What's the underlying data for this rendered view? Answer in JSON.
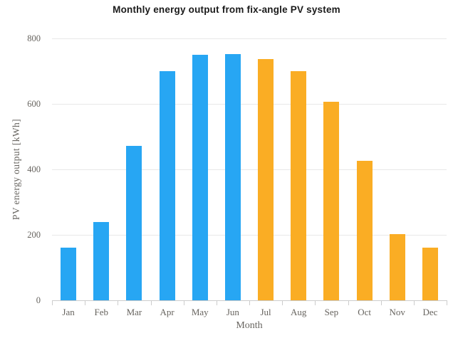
{
  "chart_data": {
    "type": "bar",
    "title": "Monthly energy output from fix-angle PV system",
    "xlabel": "Month",
    "ylabel": "PV energy output [kWh]",
    "categories": [
      "Jan",
      "Feb",
      "Mar",
      "Apr",
      "May",
      "Jun",
      "Jul",
      "Aug",
      "Sep",
      "Oct",
      "Nov",
      "Dec"
    ],
    "values": [
      161,
      239,
      472,
      699,
      750,
      753,
      738,
      701,
      607,
      426,
      203,
      161
    ],
    "bar_colors": [
      "blue",
      "blue",
      "blue",
      "blue",
      "blue",
      "blue",
      "orange",
      "orange",
      "orange",
      "orange",
      "orange",
      "orange"
    ],
    "ylim": [
      0,
      800
    ],
    "yticks": [
      0,
      200,
      400,
      600,
      800
    ],
    "grid": true,
    "legend": false
  },
  "colors": {
    "blue": "#27A6F3",
    "orange": "#FAAD24",
    "grid": "#e8e8e8",
    "axis_line": "#cccccc",
    "axis_text": "#67645f",
    "title_text": "#1a1a1a",
    "background": "#ffffff"
  }
}
